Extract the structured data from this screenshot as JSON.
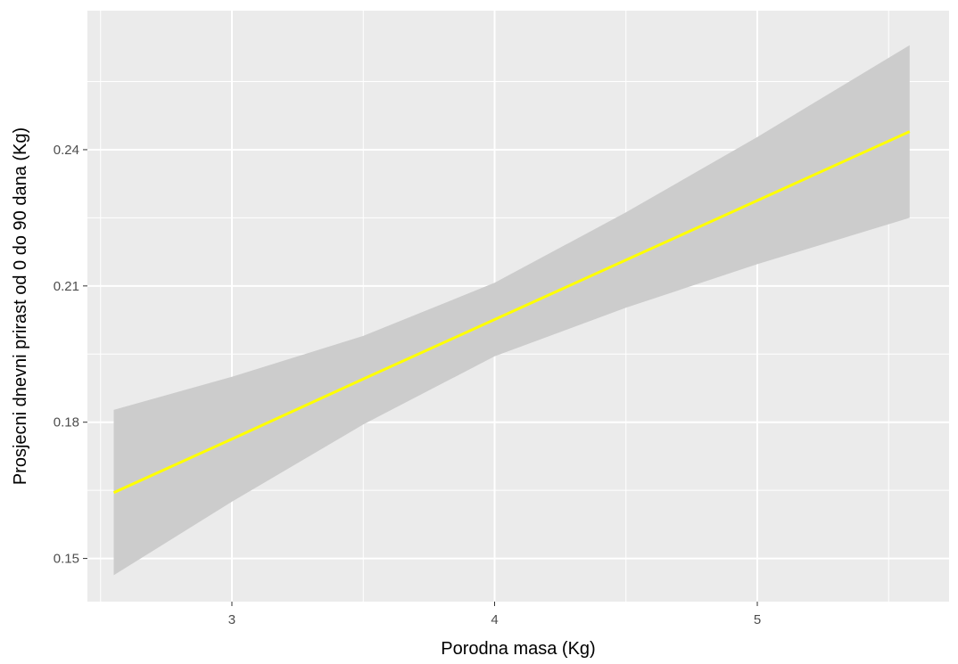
{
  "chart_data": {
    "type": "line",
    "title": "",
    "xlabel": "Porodna masa (Kg)",
    "ylabel": "Prosjecni dnevni prirast od 0 do 90 dana (Kg)",
    "xlim": [
      2.45,
      5.73
    ],
    "ylim": [
      0.1405,
      0.2706
    ],
    "x_ticks": [
      3,
      4,
      5
    ],
    "x_tick_labels": [
      "3",
      "4",
      "5"
    ],
    "x_minor_ticks": [
      2.5,
      3.5,
      4.5,
      5.5
    ],
    "y_ticks": [
      0.15,
      0.18,
      0.21,
      0.24
    ],
    "y_tick_labels": [
      "0.15",
      "0.18",
      "0.21",
      "0.24"
    ],
    "y_minor_ticks": [
      0.165,
      0.195,
      0.225,
      0.255
    ],
    "grid": true,
    "legend": "none",
    "colors": {
      "panel_background": "#ebebeb",
      "grid_line": "#ffffff",
      "ribbon": "#cccccc",
      "line": "#ffff00",
      "tick_label": "#4d4d4d",
      "axis_title": "#000000"
    },
    "series": [
      {
        "x": [
          2.55,
          3.0,
          3.5,
          4.0,
          4.5,
          5.0,
          5.58
        ],
        "y": [
          0.1645,
          0.1763,
          0.1895,
          0.2026,
          0.2157,
          0.2288,
          0.244
        ],
        "ci_lower": [
          0.1463,
          0.1625,
          0.1795,
          0.1945,
          0.2052,
          0.2148,
          0.225
        ],
        "ci_upper": [
          0.1827,
          0.19,
          0.199,
          0.2107,
          0.2262,
          0.2428,
          0.263
        ]
      }
    ]
  }
}
